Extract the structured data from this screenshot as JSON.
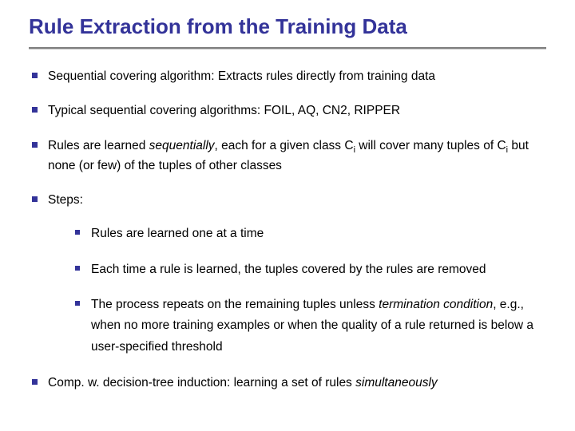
{
  "colors": {
    "title": "#333399",
    "divider_top": "#808080",
    "divider_bottom": "#c0c0c0",
    "bullet": "#333399",
    "text": "#000000",
    "background": "#ffffff"
  },
  "typography": {
    "title_fontsize": 26,
    "body_fontsize": 15.5,
    "sub_fontsize": 15.5,
    "title_weight": "bold",
    "body_weight": "normal",
    "font_family": "Verdana, Geneva, sans-serif"
  },
  "layout": {
    "divider_top_height": 2,
    "divider_bottom_height": 1
  },
  "title": "Rule Extraction from the Training Data",
  "bullets": {
    "b1": "Sequential covering algorithm: Extracts rules directly from training data",
    "b2": "Typical sequential covering algorithms: FOIL, AQ, CN2, RIPPER",
    "b3_a": "Rules are learned ",
    "b3_i": "sequentially",
    "b3_b": ", each for a given class C",
    "b3_c": " will cover many tuples of C",
    "b3_d": " but none (or few) of the tuples of other classes",
    "b3_sub1": "i",
    "b3_sub2": "i",
    "b4": "Steps:",
    "b4_s1": "Rules are learned one at a time",
    "b4_s2": "Each time a rule is learned, the tuples covered by the rules are removed",
    "b4_s3_a": "The process repeats on the remaining tuples unless ",
    "b4_s3_i": "termination condition",
    "b4_s3_b": ", e.g., when no more training examples or when the quality of a rule returned is below a user-specified threshold",
    "b5_a": "Comp. w. decision-tree induction: learning a set of rules ",
    "b5_i": "simultaneously"
  }
}
